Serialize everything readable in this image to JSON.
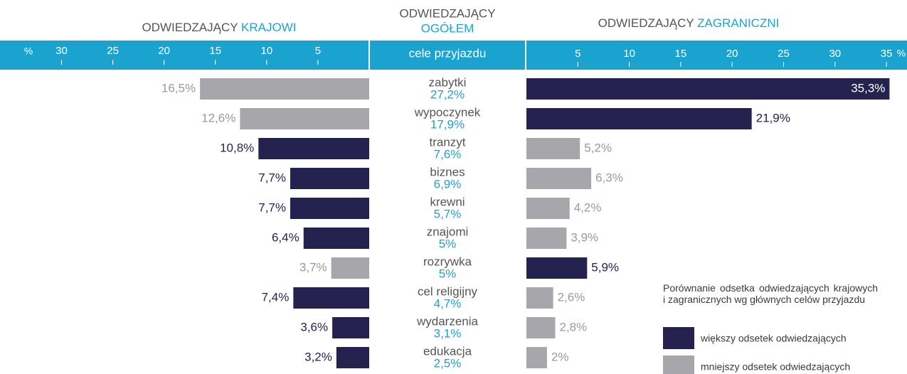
{
  "chart_data": {
    "type": "butterfly",
    "left_title": {
      "text": "ODWIEDZAJĄCY",
      "highlight": "KRAJOWI"
    },
    "center_title": {
      "text": "ODWIEDZAJĄCY",
      "highlight": "OGÓŁEM"
    },
    "right_title": {
      "text": "ODWIEDZAJĄCY",
      "highlight": "ZAGRANICZNI"
    },
    "center_header": "cele przyjazdu",
    "left_unit": "%",
    "right_unit": "%",
    "categories": [
      "zabytki",
      "wypoczynek",
      "tranzyt",
      "biznes",
      "krewni",
      "znajomi",
      "rozrywka",
      "cel religijny",
      "wydarzenia",
      "edukacja"
    ],
    "domestic": {
      "values": [
        16.5,
        12.6,
        10.8,
        7.7,
        7.7,
        6.4,
        3.7,
        7.4,
        3.6,
        3.2
      ],
      "value_labels": [
        "16,5%",
        "12,6%",
        "10,8%",
        "7,7%",
        "7,7%",
        "6,4%",
        "3,7%",
        "7,4%",
        "3,6%",
        "3,2%"
      ]
    },
    "overall": {
      "values": [
        27.2,
        17.9,
        7.6,
        6.9,
        5.7,
        5,
        5,
        4.7,
        3.1,
        2.5
      ],
      "value_labels": [
        "27,2%",
        "17,9%",
        "7,6%",
        "6,9%",
        "5,7%",
        "5%",
        "5%",
        "4,7%",
        "3,1%",
        "2,5%"
      ]
    },
    "foreign": {
      "values": [
        35.3,
        21.9,
        5.2,
        6.3,
        4.2,
        3.9,
        5.9,
        2.6,
        2.8,
        2
      ],
      "value_labels": [
        "35,3%",
        "21,9%",
        "5,2%",
        "6,3%",
        "4,2%",
        "3,9%",
        "5,9%",
        "2,6%",
        "2,8%",
        "2%"
      ]
    },
    "xlim_left": [
      0,
      36
    ],
    "xticks_left": [
      30,
      25,
      20,
      15,
      10,
      5
    ],
    "xlim_right": [
      0,
      37
    ],
    "xticks_right": [
      5,
      10,
      15,
      20,
      25,
      30,
      35
    ],
    "note": "Porównanie odsetka odwiedzających krajowych i zagranicznych wg głównych celów przyjazdu",
    "legend": [
      {
        "label": "większy odsetek odwiedzających",
        "color": "#25224f"
      },
      {
        "label": "mniejszy odsetek odwiedzających",
        "color": "#a7a7ab"
      }
    ]
  }
}
